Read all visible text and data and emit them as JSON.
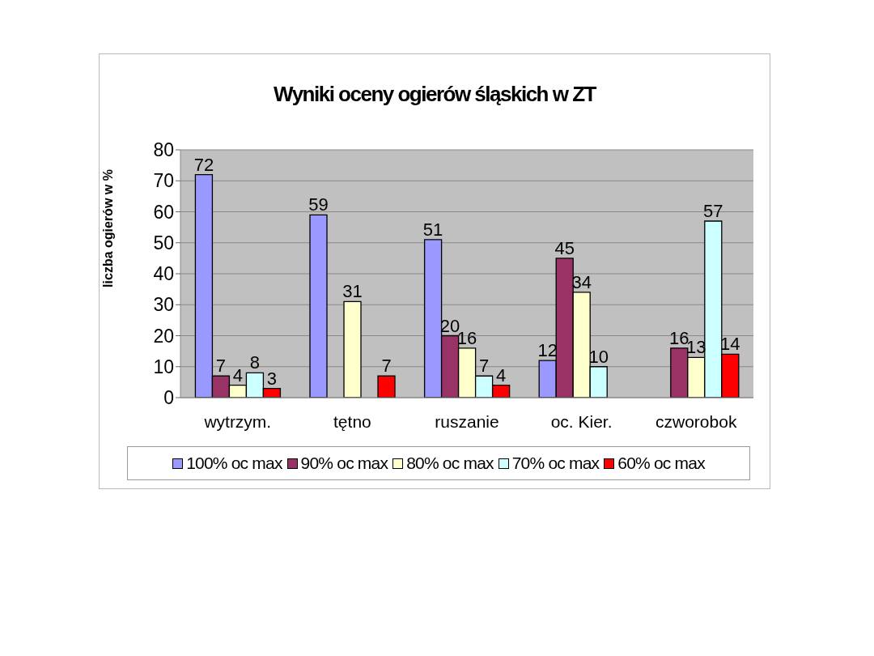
{
  "chart_data": {
    "type": "bar",
    "title": "Wyniki oceny ogierów śląskich w ZT",
    "ylabel": "liczba ogierów w %",
    "categories": [
      "wytrzym.",
      "tętno",
      "ruszanie",
      "oc. Kier.",
      "czworobok"
    ],
    "series": [
      {
        "name": "100% oc max",
        "color": "#9999ff",
        "values": [
          72,
          59,
          51,
          12,
          null
        ]
      },
      {
        "name": "90% oc max",
        "color": "#993366",
        "values": [
          7,
          null,
          20,
          45,
          16
        ]
      },
      {
        "name": "80% oc max",
        "color": "#ffffcc",
        "values": [
          4,
          31,
          16,
          34,
          13
        ]
      },
      {
        "name": "70% oc max",
        "color": "#ccffff",
        "values": [
          8,
          null,
          7,
          10,
          57
        ]
      },
      {
        "name": "60% oc max",
        "color": "#ff0000",
        "values": [
          3,
          7,
          4,
          null,
          14
        ]
      }
    ],
    "ylim": [
      0,
      80
    ],
    "yticks": [
      0,
      10,
      20,
      30,
      40,
      50,
      60,
      70,
      80
    ],
    "grid": "y",
    "legend": "bottom",
    "data_labels": true
  }
}
